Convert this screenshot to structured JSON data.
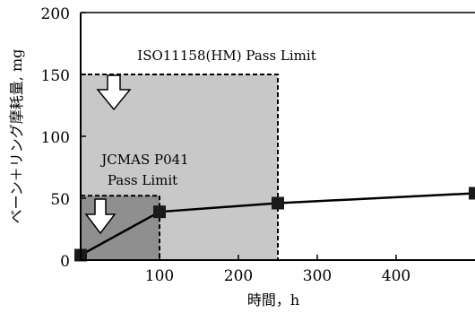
{
  "chart_data": {
    "type": "line",
    "xlabel": "時間，h",
    "ylabel": "ベーン＋リング摩耗量, mg",
    "xlim": [
      0,
      500
    ],
    "ylim": [
      0,
      200
    ],
    "x_ticks": [
      "100",
      "200",
      "300",
      "400"
    ],
    "y_ticks": [
      "0",
      "50",
      "100",
      "150",
      "200"
    ],
    "series": [
      {
        "x": [
          0,
          100,
          250,
          500
        ],
        "y": [
          4,
          39,
          46,
          54
        ]
      }
    ],
    "limit_regions": [
      {
        "label": "ISO11158(HM) Pass Limit",
        "x_max": 250,
        "y_max": 150,
        "fill": "#c8c8c8"
      },
      {
        "label_lines": [
          "JCMAS P041",
          "Pass Limit"
        ],
        "x_max": 100,
        "y_max": 52,
        "fill": "#8f8f8f"
      }
    ],
    "grid": false
  }
}
